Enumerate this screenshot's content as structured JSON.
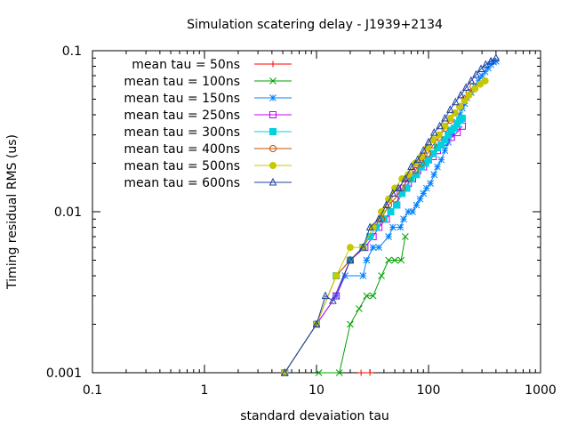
{
  "chart_data": {
    "type": "line",
    "title": "Simulation scatering delay - J1939+2134",
    "xlabel": "standard devaiation tau",
    "ylabel": "Timing residual RMS (us)",
    "xscale": "log",
    "yscale": "log",
    "xlim": [
      0.1,
      1000
    ],
    "ylim": [
      0.001,
      0.1
    ],
    "xticks": [
      {
        "value": 0.1,
        "label": "0.1"
      },
      {
        "value": 1,
        "label": "1"
      },
      {
        "value": 10,
        "label": "10"
      },
      {
        "value": 100,
        "label": "100"
      },
      {
        "value": 1000,
        "label": "1000"
      }
    ],
    "yticks": [
      {
        "value": 0.001,
        "label": "0.001"
      },
      {
        "value": 0.01,
        "label": "0.01"
      },
      {
        "value": 0.1,
        "label": "0.1"
      }
    ],
    "grid": false,
    "legend_position": "top-left",
    "series": [
      {
        "name": "mean tau = 50ns",
        "color": "#ff0000",
        "marker": "plus",
        "x": [
          25,
          30
        ],
        "y": [
          0.001,
          0.001
        ]
      },
      {
        "name": "mean tau = 100ns",
        "color": "#00a000",
        "marker": "cross",
        "x": [
          10.5,
          16,
          20,
          24,
          28,
          32,
          38,
          44,
          50,
          57,
          62
        ],
        "y": [
          0.001,
          0.001,
          0.002,
          0.0025,
          0.003,
          0.003,
          0.004,
          0.005,
          0.005,
          0.005,
          0.007
        ]
      },
      {
        "name": "mean tau = 150ns",
        "color": "#0080ff",
        "marker": "star",
        "x": [
          5.2,
          10,
          15,
          18,
          26,
          28,
          32,
          36,
          44,
          48,
          56,
          60,
          66,
          72,
          78,
          84,
          90,
          96,
          104,
          112,
          120,
          130,
          140,
          150,
          160,
          170,
          180,
          190,
          200,
          210,
          220,
          240,
          260,
          280,
          300,
          320,
          340,
          360,
          380,
          400
        ],
        "y": [
          0.001,
          0.002,
          0.003,
          0.004,
          0.004,
          0.005,
          0.006,
          0.006,
          0.007,
          0.008,
          0.008,
          0.009,
          0.01,
          0.01,
          0.011,
          0.012,
          0.013,
          0.014,
          0.015,
          0.017,
          0.019,
          0.021,
          0.024,
          0.027,
          0.03,
          0.033,
          0.036,
          0.04,
          0.044,
          0.047,
          0.051,
          0.055,
          0.06,
          0.065,
          0.07,
          0.074,
          0.078,
          0.082,
          0.085,
          0.086
        ]
      },
      {
        "name": "mean tau = 250ns",
        "color": "#c000ff",
        "marker": "square",
        "x": [
          5.2,
          10,
          15,
          20,
          27,
          32,
          36,
          42,
          46,
          52,
          56,
          60,
          66,
          72,
          80,
          90,
          100,
          110,
          120,
          130,
          140,
          160,
          180,
          200
        ],
        "y": [
          0.001,
          0.002,
          0.003,
          0.005,
          0.006,
          0.007,
          0.008,
          0.009,
          0.01,
          0.011,
          0.013,
          0.014,
          0.015,
          0.016,
          0.018,
          0.019,
          0.021,
          0.022,
          0.024,
          0.026,
          0.027,
          0.029,
          0.031,
          0.034
        ]
      },
      {
        "name": "mean tau = 300ns",
        "color": "#00d0e0",
        "marker": "filled-square",
        "x": [
          5.2,
          10,
          15,
          20,
          26,
          30,
          34,
          40,
          46,
          52,
          58,
          64,
          70,
          78,
          86,
          94,
          100,
          110,
          120,
          130,
          140,
          150,
          160,
          170,
          180,
          190,
          200
        ],
        "y": [
          0.001,
          0.002,
          0.004,
          0.005,
          0.006,
          0.007,
          0.008,
          0.009,
          0.01,
          0.011,
          0.013,
          0.014,
          0.016,
          0.017,
          0.019,
          0.02,
          0.021,
          0.023,
          0.025,
          0.026,
          0.028,
          0.03,
          0.032,
          0.033,
          0.035,
          0.037,
          0.038
        ]
      },
      {
        "name": "mean tau = 400ns",
        "color": "#c05000",
        "marker": "circle",
        "x": [
          5.2,
          10,
          15,
          20,
          26,
          32,
          38,
          44,
          50,
          58,
          66,
          76,
          86,
          98,
          110,
          124,
          140,
          156,
          172,
          190,
          210,
          230,
          250
        ],
        "y": [
          0.001,
          0.002,
          0.004,
          0.005,
          0.006,
          0.008,
          0.009,
          0.011,
          0.012,
          0.014,
          0.016,
          0.018,
          0.02,
          0.023,
          0.026,
          0.029,
          0.033,
          0.037,
          0.041,
          0.045,
          0.05,
          0.055,
          0.06
        ]
      },
      {
        "name": "mean tau = 500ns",
        "color": "#c8c800",
        "marker": "filled-circle",
        "x": [
          5.2,
          10,
          15,
          20,
          26,
          32,
          38,
          44,
          50,
          58,
          66,
          76,
          86,
          98,
          110,
          124,
          140,
          156,
          172,
          190,
          210,
          230,
          260,
          290,
          320
        ],
        "y": [
          0.001,
          0.002,
          0.004,
          0.006,
          0.006,
          0.008,
          0.01,
          0.012,
          0.014,
          0.016,
          0.017,
          0.02,
          0.022,
          0.025,
          0.028,
          0.03,
          0.034,
          0.038,
          0.041,
          0.045,
          0.049,
          0.053,
          0.058,
          0.062,
          0.065
        ]
      },
      {
        "name": "mean tau = 600ns",
        "color": "#2040a0",
        "marker": "triangle",
        "x": [
          5.2,
          10,
          12,
          14,
          20,
          26,
          30,
          36,
          42,
          48,
          54,
          62,
          70,
          80,
          90,
          100,
          112,
          126,
          140,
          156,
          174,
          194,
          216,
          240,
          266,
          294,
          324,
          360,
          400
        ],
        "y": [
          0.001,
          0.002,
          0.003,
          0.0028,
          0.005,
          0.006,
          0.008,
          0.009,
          0.011,
          0.013,
          0.014,
          0.016,
          0.019,
          0.021,
          0.024,
          0.027,
          0.031,
          0.034,
          0.038,
          0.043,
          0.048,
          0.053,
          0.059,
          0.065,
          0.071,
          0.077,
          0.082,
          0.086,
          0.09
        ]
      }
    ]
  }
}
